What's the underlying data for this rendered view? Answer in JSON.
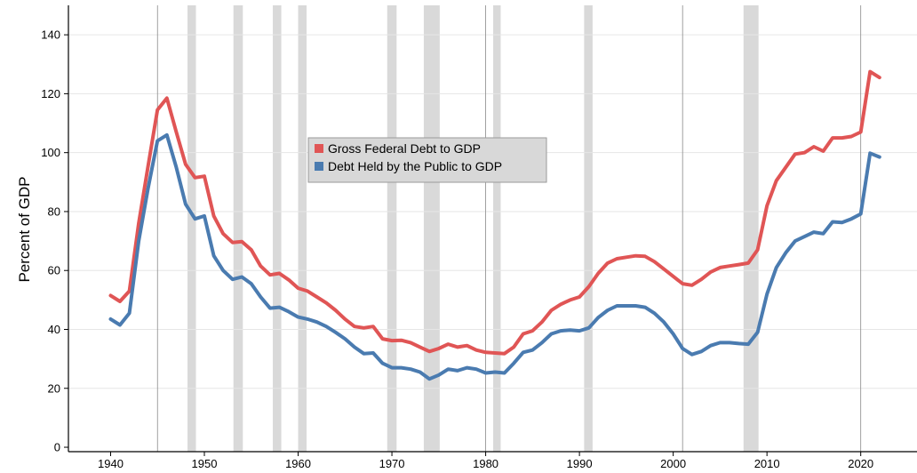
{
  "chart_data": {
    "type": "line",
    "xlabel": "",
    "ylabel": "Percent of GDP",
    "xlim": [
      1935.5,
      2026
    ],
    "ylim": [
      -1.5,
      150
    ],
    "x_ticks": [
      1940,
      1950,
      1960,
      1970,
      1980,
      1990,
      2000,
      2010,
      2020
    ],
    "y_ticks": [
      0,
      20,
      40,
      60,
      80,
      100,
      120,
      140
    ],
    "grid": {
      "horizontal": true,
      "vertical": false
    },
    "vertical_reference_lines": [
      1945,
      1980,
      2001,
      2020
    ],
    "recession_shading": [
      [
        1948.2,
        1949.1
      ],
      [
        1953.1,
        1954.1
      ],
      [
        1957.3,
        1958.2
      ],
      [
        1960.0,
        1960.9
      ],
      [
        1969.5,
        1970.5
      ],
      [
        1973.4,
        1975.1
      ],
      [
        1980.8,
        1981.6
      ],
      [
        1990.5,
        1991.4
      ],
      [
        2007.5,
        2009.1
      ]
    ],
    "legend_position": "center",
    "colors": {
      "gross": "#e05555",
      "public": "#4a7bb0",
      "recession": "#d9d9d9",
      "legend_bg": "#d8d8d8"
    },
    "series": [
      {
        "name": "Gross Federal Debt to GDP",
        "color": "#e05555",
        "x": [
          1940,
          1941,
          1942,
          1943,
          1944,
          1945,
          1946,
          1947,
          1948,
          1949,
          1950,
          1951,
          1952,
          1953,
          1954,
          1955,
          1956,
          1957,
          1958,
          1959,
          1960,
          1961,
          1962,
          1963,
          1964,
          1965,
          1966,
          1967,
          1968,
          1969,
          1970,
          1971,
          1972,
          1973,
          1974,
          1975,
          1976,
          1977,
          1978,
          1979,
          1980,
          1981,
          1982,
          1983,
          1984,
          1985,
          1986,
          1987,
          1988,
          1989,
          1990,
          1991,
          1992,
          1993,
          1994,
          1995,
          1996,
          1997,
          1998,
          1999,
          2000,
          2001,
          2002,
          2003,
          2004,
          2005,
          2006,
          2007,
          2008,
          2009,
          2010,
          2011,
          2012,
          2013,
          2014,
          2015,
          2016,
          2017,
          2018,
          2019,
          2020,
          2021,
          2022
        ],
        "values": [
          51.5,
          49.5,
          53,
          76,
          95.5,
          114.5,
          118.5,
          107,
          96,
          91.5,
          92,
          78.5,
          72.5,
          69.5,
          69.8,
          67,
          61.5,
          58.5,
          59,
          56.8,
          54,
          53,
          51,
          49,
          46.5,
          43.5,
          41,
          40.5,
          41,
          36.8,
          36.2,
          36.3,
          35.5,
          34,
          32.5,
          33.5,
          35,
          34,
          34.5,
          33,
          32.2,
          32,
          31.8,
          34,
          38.5,
          39.5,
          42.5,
          46.5,
          48.5,
          50,
          51,
          54.5,
          59,
          62.5,
          64,
          64.5,
          65,
          64.8,
          63,
          60.5,
          58,
          55.5,
          55,
          57,
          59.5,
          61,
          61.5,
          62,
          62.5,
          67,
          82,
          90.5,
          95,
          99.5,
          100,
          102,
          100.5,
          105,
          105,
          105.5,
          107,
          127.5,
          125.5
        ]
      },
      {
        "name": "Debt Held by the Public to GDP",
        "color": "#4a7bb0",
        "x": [
          1940,
          1941,
          1942,
          1943,
          1944,
          1945,
          1946,
          1947,
          1948,
          1949,
          1950,
          1951,
          1952,
          1953,
          1954,
          1955,
          1956,
          1957,
          1958,
          1959,
          1960,
          1961,
          1962,
          1963,
          1964,
          1965,
          1966,
          1967,
          1968,
          1969,
          1970,
          1971,
          1972,
          1973,
          1974,
          1975,
          1976,
          1977,
          1978,
          1979,
          1980,
          1981,
          1982,
          1983,
          1984,
          1985,
          1986,
          1987,
          1988,
          1989,
          1990,
          1991,
          1992,
          1993,
          1994,
          1995,
          1996,
          1997,
          1998,
          1999,
          2000,
          2001,
          2002,
          2003,
          2004,
          2005,
          2006,
          2007,
          2008,
          2009,
          2010,
          2011,
          2012,
          2013,
          2014,
          2015,
          2016,
          2017,
          2018,
          2019,
          2020,
          2021,
          2022
        ],
        "values": [
          43.5,
          41.5,
          45.5,
          70,
          88,
          104,
          106,
          95,
          82.5,
          77.5,
          78.5,
          65,
          60,
          57,
          57.8,
          55.5,
          51,
          47.2,
          47.5,
          46,
          44.2,
          43.5,
          42.5,
          41,
          39,
          36.8,
          34,
          31.8,
          32,
          28.5,
          27,
          27,
          26.5,
          25.5,
          23.2,
          24.5,
          26.5,
          26,
          27,
          26.5,
          25.2,
          25.5,
          25.2,
          28.5,
          32.2,
          33,
          35.5,
          38.5,
          39.5,
          39.8,
          39.5,
          40.5,
          44,
          46.5,
          48,
          48,
          48,
          47.5,
          45.5,
          42.5,
          38.5,
          33.5,
          31.5,
          32.5,
          34.5,
          35.5,
          35.5,
          35.2,
          35,
          39,
          52,
          61,
          66,
          70,
          71.5,
          73,
          72.5,
          76.5,
          76.3,
          77.5,
          79.2,
          99.8,
          98.5
        ]
      }
    ]
  }
}
